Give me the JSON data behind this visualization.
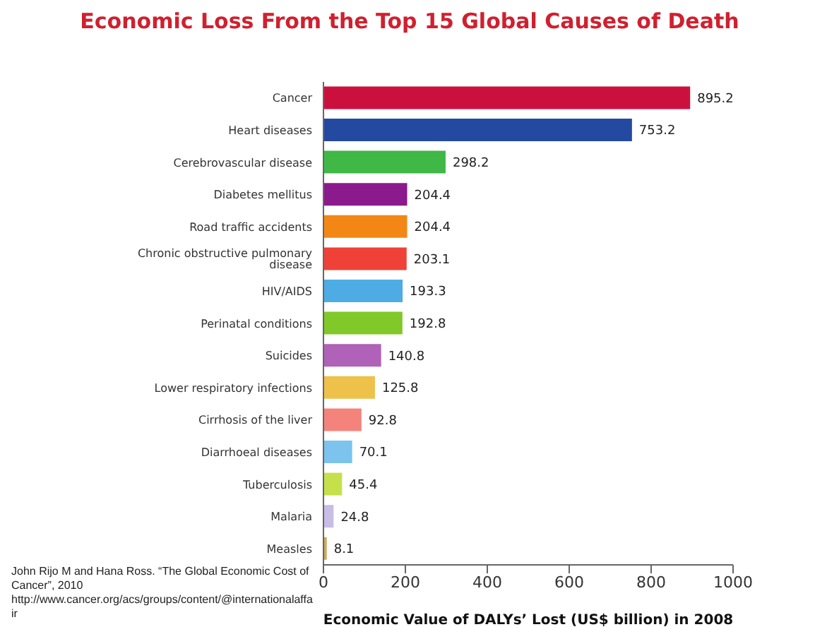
{
  "chart_data": {
    "type": "bar",
    "orientation": "horizontal",
    "title": "Economic Loss From the Top 15 Global Causes of Death",
    "xlabel": "Economic Value of DALYs’ Lost (US$ billion) in 2008",
    "categories": [
      "Cancer",
      "Heart diseases",
      "Cerebrovascular disease",
      "Diabetes mellitus",
      "Road traffic accidents",
      "Chronic obstructive pulmonary disease",
      "HIV/AIDS",
      "Perinatal conditions",
      "Suicides",
      "Lower respiratory infections",
      "Cirrhosis of the liver",
      "Diarrhoeal diseases",
      "Tuberculosis",
      "Malaria",
      "Measles"
    ],
    "values": [
      895.2,
      753.2,
      298.2,
      204.4,
      204.4,
      203.1,
      193.3,
      192.8,
      140.8,
      125.8,
      92.8,
      70.1,
      45.4,
      24.8,
      8.1
    ],
    "colors": [
      "#cc103e",
      "#2449a0",
      "#3fb846",
      "#8b1a8c",
      "#f38716",
      "#ef4137",
      "#4eace4",
      "#80c928",
      "#b061b8",
      "#eec24a",
      "#f4837b",
      "#7cc3ee",
      "#c5e04b",
      "#c7bde6",
      "#cfa95c"
    ],
    "xlim": [
      0,
      1000
    ],
    "xticks": [
      0,
      200,
      400,
      600,
      800,
      1000
    ],
    "data_labels": true,
    "grid": false,
    "legend": false,
    "annotations": [
      "John Rijo M and Hana Ross. “The Global Economic Cost of Cancer”, 2010",
      "http://www.cancer.org/acs/groups/content/@internationalaffair"
    ]
  }
}
